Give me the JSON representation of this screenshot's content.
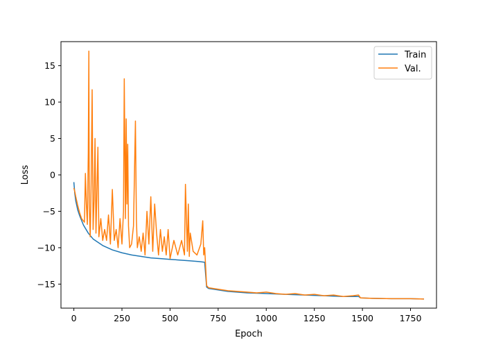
{
  "chart_data": {
    "type": "line",
    "title": "",
    "xlabel": "Epoch",
    "ylabel": "Loss",
    "xlim": [
      -67,
      1885
    ],
    "ylim": [
      -18.3,
      18.3
    ],
    "xticks": [
      0,
      250,
      500,
      750,
      1000,
      1250,
      1500,
      1750
    ],
    "yticks": [
      -15,
      -10,
      -5,
      0,
      5,
      10,
      15
    ],
    "grid": false,
    "legend": "top-right",
    "series": [
      {
        "name": "Train",
        "color": "#1f77b4",
        "x": [
          0,
          5,
          10,
          20,
          30,
          50,
          75,
          100,
          150,
          200,
          250,
          300,
          350,
          400,
          450,
          500,
          550,
          600,
          650,
          680,
          690,
          700,
          750,
          800,
          900,
          1000,
          1100,
          1200,
          1300,
          1400,
          1480,
          1490,
          1550,
          1650,
          1750,
          1820
        ],
        "y": [
          -1.0,
          -2.6,
          -3.6,
          -4.8,
          -5.6,
          -6.9,
          -8.0,
          -8.8,
          -9.7,
          -10.3,
          -10.7,
          -11.0,
          -11.2,
          -11.4,
          -11.5,
          -11.6,
          -11.7,
          -11.8,
          -11.9,
          -12.0,
          -15.4,
          -15.6,
          -15.8,
          -16.0,
          -16.2,
          -16.3,
          -16.4,
          -16.5,
          -16.6,
          -16.7,
          -16.7,
          -16.9,
          -16.95,
          -17.0,
          -17.0,
          -17.05
        ]
      },
      {
        "name": "Val.",
        "color": "#ff7f0e",
        "x": [
          0,
          5,
          10,
          20,
          30,
          40,
          55,
          60,
          65,
          70,
          75,
          78,
          80,
          85,
          90,
          95,
          100,
          105,
          110,
          115,
          120,
          125,
          130,
          140,
          150,
          160,
          170,
          180,
          190,
          200,
          210,
          220,
          230,
          240,
          250,
          258,
          262,
          268,
          272,
          276,
          280,
          284,
          290,
          300,
          310,
          320,
          325,
          330,
          340,
          350,
          360,
          370,
          380,
          390,
          400,
          410,
          420,
          430,
          440,
          450,
          460,
          470,
          480,
          490,
          500,
          520,
          540,
          560,
          575,
          580,
          590,
          595,
          600,
          605,
          620,
          640,
          660,
          670,
          675,
          680,
          690,
          700,
          750,
          800,
          850,
          900,
          950,
          1000,
          1050,
          1100,
          1150,
          1200,
          1250,
          1300,
          1350,
          1400,
          1450,
          1480,
          1490,
          1550,
          1650,
          1750,
          1820
        ],
        "y": [
          -1.8,
          -2.3,
          -3.0,
          -4.2,
          -5.2,
          -6.0,
          -6.5,
          0.2,
          -4.0,
          -6.8,
          3.0,
          17.0,
          -4.0,
          -8.5,
          -1.0,
          11.7,
          -7.5,
          -3.5,
          5.0,
          -8.0,
          -2.0,
          3.8,
          -8.5,
          -6.0,
          -9.0,
          -7.5,
          -9.0,
          -5.5,
          -9.5,
          -2.0,
          -9.0,
          -7.5,
          -10.0,
          -6.0,
          -9.5,
          -5.0,
          13.2,
          -6.0,
          7.7,
          -4.0,
          4.2,
          -7.0,
          -10.0,
          -9.5,
          -7.0,
          7.4,
          -6.0,
          -10.0,
          -8.5,
          -10.5,
          -8.0,
          -11.0,
          -5.0,
          -9.5,
          -3.0,
          -10.5,
          -4.0,
          -8.0,
          -11.0,
          -7.5,
          -10.5,
          -8.5,
          -11.0,
          -7.5,
          -11.5,
          -9.0,
          -11.0,
          -9.0,
          -11.0,
          -1.3,
          -10.5,
          -4.0,
          -11.2,
          -8.0,
          -10.5,
          -11.0,
          -9.5,
          -6.3,
          -11.0,
          -10.0,
          -15.2,
          -15.5,
          -15.7,
          -15.9,
          -16.0,
          -16.1,
          -16.2,
          -16.1,
          -16.3,
          -16.4,
          -16.3,
          -16.5,
          -16.4,
          -16.6,
          -16.5,
          -16.7,
          -16.6,
          -16.5,
          -16.9,
          -16.95,
          -17.0,
          -17.0,
          -17.05
        ]
      }
    ]
  }
}
